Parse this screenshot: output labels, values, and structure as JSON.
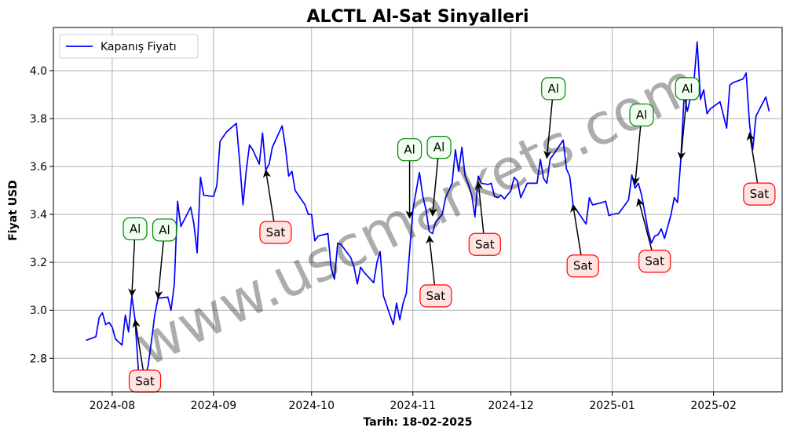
{
  "chart_data": {
    "type": "line",
    "title": "ALCTL Al-Sat Sinyalleri",
    "xlabel": "Tarih: 18-02-2025",
    "ylabel": "Fiyat USD",
    "xlim": [
      "2024-07-14",
      "2025-02-22"
    ],
    "ylim": [
      2.66,
      4.18
    ],
    "xticks": [
      {
        "date": "2024-08-01",
        "label": "2024-08"
      },
      {
        "date": "2024-09-01",
        "label": "2024-09"
      },
      {
        "date": "2024-10-01",
        "label": "2024-10"
      },
      {
        "date": "2024-11-01",
        "label": "2024-11"
      },
      {
        "date": "2024-12-01",
        "label": "2024-12"
      },
      {
        "date": "2025-01-01",
        "label": "2025-01"
      },
      {
        "date": "2025-02-01",
        "label": "2025-02"
      }
    ],
    "yticks": [
      2.8,
      3.0,
      3.2,
      3.4,
      3.6,
      3.8,
      4.0
    ],
    "grid": true,
    "legend": {
      "position": "top-left",
      "entries": [
        "Kapanış Fiyatı"
      ]
    },
    "series": [
      {
        "name": "Kapanış Fiyatı",
        "color": "#0000ff",
        "points": [
          [
            "2024-07-24",
            2.875
          ],
          [
            "2024-07-27",
            2.89
          ],
          [
            "2024-07-28",
            2.97
          ],
          [
            "2024-07-29",
            2.99
          ],
          [
            "2024-07-30",
            2.94
          ],
          [
            "2024-07-31",
            2.95
          ],
          [
            "2024-08-01",
            2.93
          ],
          [
            "2024-08-02",
            2.88
          ],
          [
            "2024-08-04",
            2.855
          ],
          [
            "2024-08-05",
            2.98
          ],
          [
            "2024-08-06",
            2.91
          ],
          [
            "2024-08-07",
            3.06
          ],
          [
            "2024-08-08",
            2.96
          ],
          [
            "2024-08-09",
            2.75
          ],
          [
            "2024-08-11",
            2.71
          ],
          [
            "2024-08-12",
            2.77
          ],
          [
            "2024-08-13",
            2.87
          ],
          [
            "2024-08-14",
            2.98
          ],
          [
            "2024-08-15",
            3.05
          ],
          [
            "2024-08-18",
            3.055
          ],
          [
            "2024-08-19",
            3.0
          ],
          [
            "2024-08-20",
            3.11
          ],
          [
            "2024-08-21",
            3.455
          ],
          [
            "2024-08-22",
            3.35
          ],
          [
            "2024-08-25",
            3.43
          ],
          [
            "2024-08-26",
            3.36
          ],
          [
            "2024-08-27",
            3.24
          ],
          [
            "2024-08-28",
            3.555
          ],
          [
            "2024-08-29",
            3.48
          ],
          [
            "2024-09-01",
            3.475
          ],
          [
            "2024-09-02",
            3.52
          ],
          [
            "2024-09-03",
            3.705
          ],
          [
            "2024-09-05",
            3.745
          ],
          [
            "2024-09-08",
            3.78
          ],
          [
            "2024-09-09",
            3.62
          ],
          [
            "2024-09-10",
            3.44
          ],
          [
            "2024-09-11",
            3.58
          ],
          [
            "2024-09-12",
            3.69
          ],
          [
            "2024-09-13",
            3.67
          ],
          [
            "2024-09-15",
            3.61
          ],
          [
            "2024-09-16",
            3.74
          ],
          [
            "2024-09-17",
            3.585
          ],
          [
            "2024-09-18",
            3.61
          ],
          [
            "2024-09-19",
            3.68
          ],
          [
            "2024-09-22",
            3.77
          ],
          [
            "2024-09-23",
            3.68
          ],
          [
            "2024-09-24",
            3.56
          ],
          [
            "2024-09-25",
            3.58
          ],
          [
            "2024-09-26",
            3.5
          ],
          [
            "2024-09-29",
            3.44
          ],
          [
            "2024-09-30",
            3.4
          ],
          [
            "2024-10-01",
            3.4
          ],
          [
            "2024-10-02",
            3.29
          ],
          [
            "2024-10-03",
            3.31
          ],
          [
            "2024-10-06",
            3.32
          ],
          [
            "2024-10-07",
            3.175
          ],
          [
            "2024-10-08",
            3.13
          ],
          [
            "2024-10-09",
            3.28
          ],
          [
            "2024-10-10",
            3.275
          ],
          [
            "2024-10-13",
            3.22
          ],
          [
            "2024-10-14",
            3.18
          ],
          [
            "2024-10-15",
            3.11
          ],
          [
            "2024-10-16",
            3.18
          ],
          [
            "2024-10-17",
            3.16
          ],
          [
            "2024-10-20",
            3.115
          ],
          [
            "2024-10-21",
            3.2
          ],
          [
            "2024-10-22",
            3.245
          ],
          [
            "2024-10-23",
            3.06
          ],
          [
            "2024-10-26",
            2.94
          ],
          [
            "2024-10-27",
            3.03
          ],
          [
            "2024-10-28",
            2.96
          ],
          [
            "2024-10-29",
            3.03
          ],
          [
            "2024-10-30",
            3.07
          ],
          [
            "2024-11-01",
            3.42
          ],
          [
            "2024-11-03",
            3.575
          ],
          [
            "2024-11-04",
            3.48
          ],
          [
            "2024-11-05",
            3.42
          ],
          [
            "2024-11-06",
            3.33
          ],
          [
            "2024-11-07",
            3.32
          ],
          [
            "2024-11-08",
            3.37
          ],
          [
            "2024-11-10",
            3.4
          ],
          [
            "2024-11-11",
            3.47
          ],
          [
            "2024-11-13",
            3.53
          ],
          [
            "2024-11-14",
            3.67
          ],
          [
            "2024-11-15",
            3.58
          ],
          [
            "2024-11-16",
            3.68
          ],
          [
            "2024-11-17",
            3.56
          ],
          [
            "2024-11-18",
            3.525
          ],
          [
            "2024-11-19",
            3.48
          ],
          [
            "2024-11-20",
            3.39
          ],
          [
            "2024-11-21",
            3.56
          ],
          [
            "2024-11-22",
            3.53
          ],
          [
            "2024-11-24",
            3.525
          ],
          [
            "2024-11-25",
            3.53
          ],
          [
            "2024-11-26",
            3.475
          ],
          [
            "2024-11-27",
            3.47
          ],
          [
            "2024-11-28",
            3.48
          ],
          [
            "2024-11-29",
            3.465
          ],
          [
            "2024-12-01",
            3.5
          ],
          [
            "2024-12-02",
            3.555
          ],
          [
            "2024-12-03",
            3.54
          ],
          [
            "2024-12-04",
            3.47
          ],
          [
            "2024-12-05",
            3.5
          ],
          [
            "2024-12-06",
            3.53
          ],
          [
            "2024-12-09",
            3.53
          ],
          [
            "2024-12-10",
            3.63
          ],
          [
            "2024-12-11",
            3.55
          ],
          [
            "2024-12-12",
            3.53
          ],
          [
            "2024-12-13",
            3.63
          ],
          [
            "2024-12-15",
            3.67
          ],
          [
            "2024-12-16",
            3.69
          ],
          [
            "2024-12-17",
            3.71
          ],
          [
            "2024-12-18",
            3.59
          ],
          [
            "2024-12-19",
            3.56
          ],
          [
            "2024-12-20",
            3.44
          ],
          [
            "2024-12-21",
            3.42
          ],
          [
            "2024-12-22",
            3.4
          ],
          [
            "2024-12-24",
            3.36
          ],
          [
            "2024-12-25",
            3.47
          ],
          [
            "2024-12-26",
            3.44
          ],
          [
            "2024-12-29",
            3.45
          ],
          [
            "2024-12-30",
            3.455
          ],
          [
            "2024-12-31",
            3.395
          ],
          [
            "2025-01-01",
            3.4
          ],
          [
            "2025-01-03",
            3.405
          ],
          [
            "2025-01-06",
            3.46
          ],
          [
            "2025-01-07",
            3.565
          ],
          [
            "2025-01-08",
            3.51
          ],
          [
            "2025-01-09",
            3.53
          ],
          [
            "2025-01-10",
            3.48
          ],
          [
            "2025-01-12",
            3.33
          ],
          [
            "2025-01-13",
            3.28
          ],
          [
            "2025-01-14",
            3.31
          ],
          [
            "2025-01-15",
            3.315
          ],
          [
            "2025-01-16",
            3.34
          ],
          [
            "2025-01-17",
            3.3
          ],
          [
            "2025-01-19",
            3.4
          ],
          [
            "2025-01-20",
            3.47
          ],
          [
            "2025-01-21",
            3.45
          ],
          [
            "2025-01-22",
            3.63
          ],
          [
            "2025-01-23",
            3.9
          ],
          [
            "2025-01-24",
            3.83
          ],
          [
            "2025-01-26",
            3.95
          ],
          [
            "2025-01-27",
            4.12
          ],
          [
            "2025-01-28",
            3.88
          ],
          [
            "2025-01-29",
            3.92
          ],
          [
            "2025-01-30",
            3.82
          ],
          [
            "2025-01-31",
            3.84
          ],
          [
            "2025-02-03",
            3.87
          ],
          [
            "2025-02-05",
            3.76
          ],
          [
            "2025-02-06",
            3.94
          ],
          [
            "2025-02-07",
            3.95
          ],
          [
            "2025-02-10",
            3.965
          ],
          [
            "2025-02-11",
            3.99
          ],
          [
            "2025-02-12",
            3.78
          ],
          [
            "2025-02-13",
            3.67
          ],
          [
            "2025-02-14",
            3.81
          ],
          [
            "2025-02-17",
            3.89
          ],
          [
            "2025-02-18",
            3.83
          ]
        ]
      }
    ],
    "annotations": [
      {
        "label": "Al",
        "kind": "buy",
        "date": "2024-08-07",
        "value": 3.06,
        "text_date": "2024-08-08",
        "text_value": 3.34
      },
      {
        "label": "Sat",
        "kind": "sell",
        "date": "2024-08-08",
        "value": 2.96,
        "text_date": "2024-08-11",
        "text_value": 2.705
      },
      {
        "label": "Al",
        "kind": "buy",
        "date": "2024-08-15",
        "value": 3.05,
        "text_date": "2024-08-17",
        "text_value": 3.335
      },
      {
        "label": "Sat",
        "kind": "sell",
        "date": "2024-09-17",
        "value": 3.585,
        "text_date": "2024-09-20",
        "text_value": 3.325
      },
      {
        "label": "Al",
        "kind": "buy",
        "date": "2024-10-31",
        "value": 3.385,
        "text_date": "2024-10-31",
        "text_value": 3.67
      },
      {
        "label": "Sat",
        "kind": "sell",
        "date": "2024-11-06",
        "value": 3.31,
        "text_date": "2024-11-08",
        "text_value": 3.06
      },
      {
        "label": "Al",
        "kind": "buy",
        "date": "2024-11-07",
        "value": 3.395,
        "text_date": "2024-11-09",
        "text_value": 3.68
      },
      {
        "label": "Sat",
        "kind": "sell",
        "date": "2024-11-21",
        "value": 3.535,
        "text_date": "2024-11-23",
        "text_value": 3.275
      },
      {
        "label": "Al",
        "kind": "buy",
        "date": "2024-12-12",
        "value": 3.635,
        "text_date": "2024-12-14",
        "text_value": 3.925
      },
      {
        "label": "Sat",
        "kind": "sell",
        "date": "2024-12-20",
        "value": 3.44,
        "text_date": "2024-12-23",
        "text_value": 3.185
      },
      {
        "label": "Al",
        "kind": "buy",
        "date": "2025-01-08",
        "value": 3.525,
        "text_date": "2025-01-10",
        "text_value": 3.815
      },
      {
        "label": "Sat",
        "kind": "sell",
        "date": "2025-01-09",
        "value": 3.465,
        "text_date": "2025-01-14",
        "text_value": 3.205
      },
      {
        "label": "Al",
        "kind": "buy",
        "date": "2025-01-22",
        "value": 3.63,
        "text_date": "2025-01-24",
        "text_value": 3.925
      },
      {
        "label": "Sat",
        "kind": "sell",
        "date": "2025-02-12",
        "value": 3.74,
        "text_date": "2025-02-15",
        "text_value": 3.485
      }
    ],
    "colors": {
      "line": "#0000ff",
      "buy_box_fill": "#f0fff0",
      "buy_box_edge": "#008000",
      "sell_box_fill": "#ffe4e1",
      "sell_box_edge": "#ff0000",
      "grid": "#b0b0b0"
    },
    "watermark": "www.uscmarkets.com"
  }
}
